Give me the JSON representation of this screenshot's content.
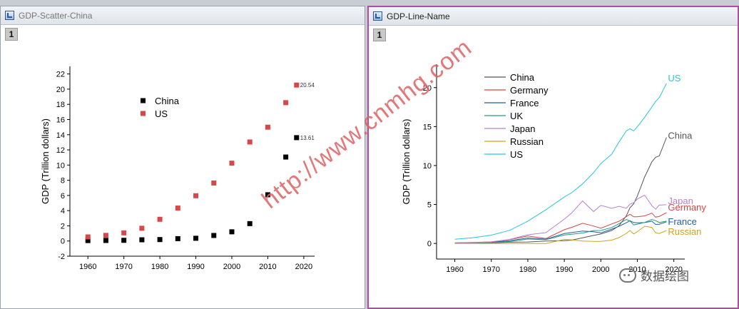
{
  "windows": [
    {
      "title": "GDP-Scatter-China",
      "layer": "1"
    },
    {
      "title": "GDP-Line-Name",
      "layer": "1"
    }
  ],
  "watermark": "http://www.cnmhg.com",
  "wechat_label": "数据绘图",
  "colors": {
    "China": "#000000",
    "US_scatter": "#d9474a",
    "Germany": "#d64545",
    "France": "#1f5f9e",
    "UK": "#1f9a84",
    "Japan": "#b87fd6",
    "Russian": "#d4a216",
    "US_line": "#27c4e2",
    "China_line": "#555555"
  },
  "chart_data": [
    {
      "type": "scatter",
      "ylabel": "GDP (Trillion dollars)",
      "xlabel": "",
      "xlim": [
        1955,
        2023
      ],
      "ylim": [
        -2,
        23
      ],
      "xticks": [
        1960,
        1970,
        1980,
        1990,
        2000,
        2010,
        2020
      ],
      "yticks": [
        -2,
        0,
        2,
        4,
        6,
        8,
        10,
        12,
        14,
        16,
        18,
        20,
        22
      ],
      "legend_position": "upper-left",
      "x": [
        1960,
        1965,
        1970,
        1975,
        1980,
        1985,
        1990,
        1995,
        2000,
        2005,
        2010,
        2015,
        2018
      ],
      "series": [
        {
          "name": "China",
          "values": [
            0.06,
            0.07,
            0.09,
            0.16,
            0.19,
            0.31,
            0.36,
            0.73,
            1.21,
            2.29,
            6.09,
            11.06,
            13.61
          ]
        },
        {
          "name": "US",
          "values": [
            0.54,
            0.74,
            1.07,
            1.68,
            2.86,
            4.34,
            5.96,
            7.64,
            10.25,
            13.04,
            14.99,
            18.22,
            20.54
          ]
        }
      ],
      "annotations": [
        {
          "series": "US",
          "x": 2018,
          "text": "20.54"
        },
        {
          "series": "China",
          "x": 2018,
          "text": "13.61"
        }
      ]
    },
    {
      "type": "line",
      "ylabel": "GDP (Trillion dollars)",
      "xlabel": "",
      "xlim": [
        1955,
        2023
      ],
      "ylim": [
        -2,
        23
      ],
      "xticks": [
        1960,
        1970,
        1980,
        1990,
        2000,
        2010,
        2020
      ],
      "yticks": [
        0,
        5,
        10,
        15,
        20
      ],
      "legend_position": "upper-left",
      "x": [
        1960,
        1965,
        1970,
        1975,
        1980,
        1985,
        1990,
        1992,
        1995,
        1998,
        2000,
        2003,
        2005,
        2007,
        2008,
        2009,
        2010,
        2012,
        2014,
        2015,
        2016,
        2018
      ],
      "series": [
        {
          "name": "China",
          "values": [
            0.06,
            0.07,
            0.09,
            0.16,
            0.19,
            0.31,
            0.36,
            0.43,
            0.73,
            1.03,
            1.21,
            1.66,
            2.29,
            3.55,
            4.59,
            5.1,
            6.09,
            8.53,
            10.48,
            11.06,
            11.23,
            13.61
          ]
        },
        {
          "name": "Germany",
          "values": [
            0.07,
            0.12,
            0.21,
            0.49,
            0.95,
            0.64,
            1.76,
            2.07,
            2.59,
            2.24,
            1.95,
            2.51,
            2.85,
            3.44,
            3.75,
            3.42,
            3.42,
            3.54,
            3.89,
            3.38,
            3.47,
            3.95
          ]
        },
        {
          "name": "France",
          "values": [
            0.06,
            0.1,
            0.15,
            0.36,
            0.7,
            0.55,
            1.27,
            1.4,
            1.6,
            1.5,
            1.36,
            1.84,
            2.2,
            2.66,
            2.92,
            2.69,
            2.64,
            2.68,
            2.85,
            2.44,
            2.47,
            2.78
          ]
        },
        {
          "name": "UK",
          "values": [
            0.07,
            0.1,
            0.13,
            0.24,
            0.56,
            0.49,
            1.09,
            1.18,
            1.34,
            1.65,
            1.66,
            2.05,
            2.54,
            3.08,
            2.89,
            2.38,
            2.48,
            2.7,
            3.06,
            2.93,
            2.69,
            2.86
          ]
        },
        {
          "name": "Japan",
          "values": [
            0.04,
            0.09,
            0.21,
            0.52,
            1.11,
            1.4,
            3.13,
            3.91,
            5.45,
            4.1,
            4.89,
            4.52,
            4.76,
            4.52,
            5.04,
            5.23,
            5.7,
            6.2,
            4.85,
            4.39,
            4.92,
            4.97
          ]
        },
        {
          "name": "Russian",
          "values": [
            0.0,
            0.0,
            0.0,
            0.0,
            0.0,
            0.0,
            0.52,
            0.46,
            0.31,
            0.27,
            0.26,
            0.43,
            0.76,
            1.3,
            1.66,
            1.22,
            1.52,
            2.21,
            2.06,
            1.36,
            1.28,
            1.66
          ]
        },
        {
          "name": "US",
          "values": [
            0.54,
            0.74,
            1.07,
            1.68,
            2.86,
            4.34,
            5.96,
            6.52,
            7.64,
            9.09,
            10.25,
            11.46,
            13.04,
            14.45,
            14.71,
            14.45,
            14.99,
            16.2,
            17.52,
            18.22,
            18.71,
            20.54
          ]
        }
      ],
      "legend": [
        "China",
        "Germany",
        "France",
        "UK",
        "Japan",
        "Russian",
        "US"
      ],
      "end_labels": [
        "US",
        "China",
        "Japan",
        "Germany",
        "France",
        "Russian"
      ]
    }
  ]
}
